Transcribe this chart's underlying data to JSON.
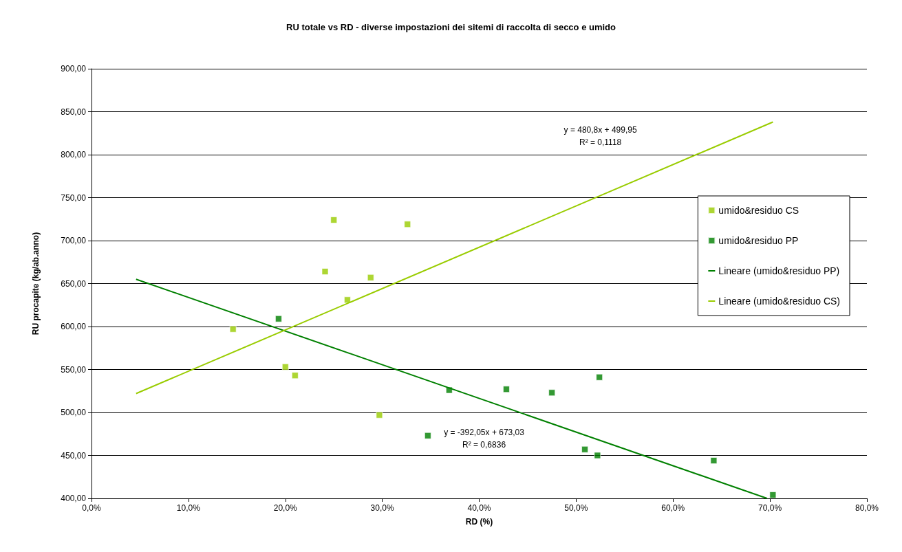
{
  "chart_data": {
    "type": "scatter",
    "title": "RU totale vs RD - diverse impostazioni dei sitemi di raccolta di secco e umido",
    "xlabel": "RD (%)",
    "ylabel": "RU procapite (kg/ab.anno)",
    "xlim": [
      0,
      80
    ],
    "xticks": [
      {
        "value": 0,
        "label": "0,0%"
      },
      {
        "value": 10,
        "label": "10,0%"
      },
      {
        "value": 20,
        "label": "20,0%"
      },
      {
        "value": 30,
        "label": "30,0%"
      },
      {
        "value": 40,
        "label": "40,0%"
      },
      {
        "value": 50,
        "label": "50,0%"
      },
      {
        "value": 60,
        "label": "60,0%"
      },
      {
        "value": 70,
        "label": "70,0%"
      },
      {
        "value": 80,
        "label": "80,0%"
      }
    ],
    "ylim": [
      400,
      900
    ],
    "yticks": [
      {
        "value": 400,
        "label": "400,00"
      },
      {
        "value": 450,
        "label": "450,00"
      },
      {
        "value": 500,
        "label": "500,00"
      },
      {
        "value": 550,
        "label": "550,00"
      },
      {
        "value": 600,
        "label": "600,00"
      },
      {
        "value": 650,
        "label": "650,00"
      },
      {
        "value": 700,
        "label": "700,00"
      },
      {
        "value": 750,
        "label": "750,00"
      },
      {
        "value": 800,
        "label": "800,00"
      },
      {
        "value": 850,
        "label": "850,00"
      },
      {
        "value": 900,
        "label": "900,00"
      }
    ],
    "grid": "y",
    "legend": "right",
    "marker": "square",
    "series": [
      {
        "name": "umido&residuo CS",
        "color": "#99cc00",
        "x": [
          25.0,
          32.6,
          24.1,
          28.8,
          26.4,
          14.6,
          20.0,
          21.0,
          29.7
        ],
        "values": [
          724,
          719,
          664,
          657,
          631,
          597,
          553,
          543,
          497
        ]
      },
      {
        "name": "umido&residuo PP",
        "color": "#008000",
        "x": [
          19.3,
          36.9,
          42.8,
          47.5,
          52.4,
          34.7,
          50.9,
          52.2,
          64.2,
          70.3
        ],
        "values": [
          609,
          526,
          527,
          523,
          541,
          473,
          457,
          450,
          444,
          404
        ]
      },
      {
        "name": "Lineare (umido&residuo PP)",
        "type": "line",
        "marker": "none",
        "color": "#008000",
        "x": [
          4.6,
          69.7
        ],
        "values": [
          655,
          400
        ]
      },
      {
        "name": "Lineare (umido&residuo CS)",
        "type": "line",
        "marker": "none",
        "color": "#99cc00",
        "x": [
          4.6,
          70.3
        ],
        "values": [
          522,
          838
        ]
      }
    ],
    "annotations": [
      "y = 480,8x + 499,95\nR² = 0,1118",
      "y = -392,05x + 673,03\nR² = 0,6836"
    ]
  }
}
